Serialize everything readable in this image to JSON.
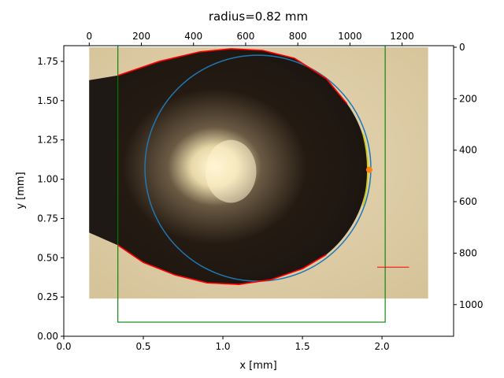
{
  "chart_data": {
    "type": "image_overlay",
    "title": "radius=0.82 mm",
    "xlabel": "x [mm]",
    "ylabel": "y [mm]",
    "xlim": [
      0.0,
      2.45
    ],
    "ylim": [
      0.0,
      1.85
    ],
    "x_ticks": [
      "0.0",
      "0.5",
      "1.0",
      "1.5",
      "2.0"
    ],
    "y_ticks": [
      "0.00",
      "0.25",
      "0.50",
      "0.75",
      "1.00",
      "1.25",
      "1.50",
      "1.75"
    ],
    "pixel_axis_top": {
      "ticks": [
        "0",
        "200",
        "400",
        "600",
        "800",
        "1000",
        "1200"
      ],
      "values": [
        0,
        200,
        400,
        600,
        800,
        1000,
        1200
      ]
    },
    "pixel_axis_right": {
      "ticks": [
        "0",
        "200",
        "400",
        "600",
        "800",
        "1000"
      ],
      "values": [
        0,
        200,
        400,
        600,
        800,
        1000
      ]
    },
    "image_extent_mm": {
      "x": [
        0.16,
        2.29
      ],
      "y": [
        0.24,
        1.84
      ]
    },
    "fitted_circle": {
      "cx": 1.22,
      "cy": 1.07,
      "r": 0.71,
      "color": "#1f77b4"
    },
    "crop_box": {
      "x": [
        0.34,
        2.02
      ],
      "y": [
        0.09,
        1.85
      ],
      "color": "#008000"
    },
    "contact_point": {
      "x": 1.92,
      "y": 1.06,
      "color": "#ff7f0e"
    },
    "apex_arc": {
      "color": "#cccc00"
    },
    "drop_profile_upper": {
      "color": "#ff0000",
      "points": [
        [
          0.34,
          1.66
        ],
        [
          0.6,
          1.75
        ],
        [
          0.85,
          1.81
        ],
        [
          1.05,
          1.83
        ],
        [
          1.25,
          1.82
        ],
        [
          1.45,
          1.77
        ],
        [
          1.65,
          1.64
        ],
        [
          1.78,
          1.48
        ]
      ]
    },
    "drop_profile_lower": {
      "color": "#ff0000",
      "points": [
        [
          0.34,
          0.58
        ],
        [
          0.5,
          0.47
        ],
        [
          0.7,
          0.39
        ],
        [
          0.9,
          0.34
        ],
        [
          1.1,
          0.33
        ],
        [
          1.3,
          0.36
        ],
        [
          1.5,
          0.43
        ],
        [
          1.65,
          0.52
        ]
      ]
    },
    "scale_bar": {
      "x": [
        1.97,
        2.17
      ],
      "y": 0.44,
      "color": "#ff0000"
    }
  }
}
